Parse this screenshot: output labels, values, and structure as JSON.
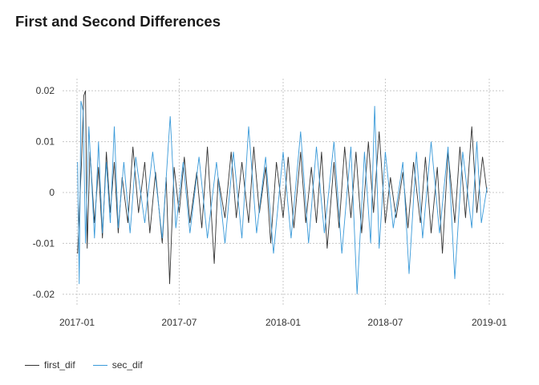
{
  "chart_data": {
    "type": "line",
    "title": "First and Second Differences",
    "xlabel": "",
    "ylabel": "",
    "x_range": [
      "2017-01-01",
      "2019-01-01"
    ],
    "x_ticks": [
      "2017-01",
      "2017-07",
      "2018-01",
      "2018-07",
      "2019-01"
    ],
    "y_ticks": [
      -0.02,
      -0.01,
      0,
      0.01,
      0.02
    ],
    "y_tick_labels": [
      "-0.02",
      "-0.01",
      "0",
      "0.01",
      "0.02"
    ],
    "ylim": [
      -0.0205,
      0.0205
    ],
    "grid": true,
    "legend_position": "bottom-left",
    "series": [
      {
        "name": "first_dif",
        "color": "#333333",
        "points": [
          [
            "2017-01-02",
            -0.012
          ],
          [
            "2017-01-09",
            0.006
          ],
          [
            "2017-01-13",
            0.019
          ],
          [
            "2017-01-16",
            0.02
          ],
          [
            "2017-01-19",
            -0.011
          ],
          [
            "2017-01-24",
            0.008
          ],
          [
            "2017-02-01",
            -0.006
          ],
          [
            "2017-02-08",
            0.005
          ],
          [
            "2017-02-15",
            -0.009
          ],
          [
            "2017-02-22",
            0.008
          ],
          [
            "2017-03-01",
            -0.004
          ],
          [
            "2017-03-08",
            0.006
          ],
          [
            "2017-03-15",
            -0.008
          ],
          [
            "2017-03-22",
            0.003
          ],
          [
            "2017-04-01",
            -0.006
          ],
          [
            "2017-04-10",
            0.009
          ],
          [
            "2017-04-20",
            -0.004
          ],
          [
            "2017-05-01",
            0.006
          ],
          [
            "2017-05-10",
            -0.008
          ],
          [
            "2017-05-20",
            0.004
          ],
          [
            "2017-06-01",
            -0.01
          ],
          [
            "2017-06-08",
            0.003
          ],
          [
            "2017-06-14",
            -0.018
          ],
          [
            "2017-06-22",
            0.005
          ],
          [
            "2017-07-01",
            -0.004
          ],
          [
            "2017-07-10",
            0.007
          ],
          [
            "2017-07-20",
            -0.006
          ],
          [
            "2017-08-01",
            0.004
          ],
          [
            "2017-08-10",
            -0.007
          ],
          [
            "2017-08-20",
            0.009
          ],
          [
            "2017-09-01",
            -0.014
          ],
          [
            "2017-09-08",
            0.003
          ],
          [
            "2017-09-20",
            -0.005
          ],
          [
            "2017-10-01",
            0.008
          ],
          [
            "2017-10-10",
            -0.005
          ],
          [
            "2017-10-20",
            0.006
          ],
          [
            "2017-11-01",
            -0.006
          ],
          [
            "2017-11-10",
            0.009
          ],
          [
            "2017-11-20",
            -0.004
          ],
          [
            "2017-12-01",
            0.005
          ],
          [
            "2017-12-10",
            -0.01
          ],
          [
            "2017-12-20",
            0.006
          ],
          [
            "2018-01-01",
            -0.005
          ],
          [
            "2018-01-10",
            0.007
          ],
          [
            "2018-01-20",
            -0.007
          ],
          [
            "2018-02-01",
            0.008
          ],
          [
            "2018-02-10",
            -0.006
          ],
          [
            "2018-02-20",
            0.005
          ],
          [
            "2018-03-01",
            -0.006
          ],
          [
            "2018-03-10",
            0.008
          ],
          [
            "2018-03-20",
            -0.011
          ],
          [
            "2018-04-01",
            0.006
          ],
          [
            "2018-04-10",
            -0.007
          ],
          [
            "2018-04-20",
            0.009
          ],
          [
            "2018-05-01",
            -0.005
          ],
          [
            "2018-05-10",
            0.008
          ],
          [
            "2018-05-20",
            -0.008
          ],
          [
            "2018-06-01",
            0.01
          ],
          [
            "2018-06-10",
            -0.004
          ],
          [
            "2018-06-20",
            0.012
          ],
          [
            "2018-07-01",
            -0.006
          ],
          [
            "2018-07-10",
            0.003
          ],
          [
            "2018-07-20",
            -0.005
          ],
          [
            "2018-08-01",
            0.004
          ],
          [
            "2018-08-10",
            -0.007
          ],
          [
            "2018-08-20",
            0.006
          ],
          [
            "2018-09-01",
            -0.006
          ],
          [
            "2018-09-10",
            0.007
          ],
          [
            "2018-09-20",
            -0.008
          ],
          [
            "2018-10-01",
            0.005
          ],
          [
            "2018-10-10",
            -0.012
          ],
          [
            "2018-10-20",
            0.008
          ],
          [
            "2018-11-01",
            -0.006
          ],
          [
            "2018-11-10",
            0.009
          ],
          [
            "2018-11-20",
            -0.005
          ],
          [
            "2018-12-01",
            0.013
          ],
          [
            "2018-12-10",
            -0.004
          ],
          [
            "2018-12-20",
            0.007
          ],
          [
            "2018-12-28",
            0.0
          ]
        ]
      },
      {
        "name": "sec_dif",
        "color": "#3a9ad9",
        "points": [
          [
            "2017-01-02",
            0.006
          ],
          [
            "2017-01-05",
            -0.018
          ],
          [
            "2017-01-08",
            0.018
          ],
          [
            "2017-01-12",
            0.016
          ],
          [
            "2017-01-16",
            -0.01
          ],
          [
            "2017-01-22",
            0.013
          ],
          [
            "2017-02-01",
            -0.009
          ],
          [
            "2017-02-08",
            0.01
          ],
          [
            "2017-02-15",
            -0.008
          ],
          [
            "2017-02-22",
            0.006
          ],
          [
            "2017-03-01",
            -0.006
          ],
          [
            "2017-03-08",
            0.013
          ],
          [
            "2017-03-15",
            -0.007
          ],
          [
            "2017-03-25",
            0.006
          ],
          [
            "2017-04-05",
            -0.008
          ],
          [
            "2017-04-15",
            0.007
          ],
          [
            "2017-05-01",
            -0.006
          ],
          [
            "2017-05-15",
            0.008
          ],
          [
            "2017-06-01",
            -0.009
          ],
          [
            "2017-06-15",
            0.015
          ],
          [
            "2017-06-25",
            -0.007
          ],
          [
            "2017-07-08",
            0.006
          ],
          [
            "2017-07-20",
            -0.008
          ],
          [
            "2017-08-05",
            0.007
          ],
          [
            "2017-08-20",
            -0.009
          ],
          [
            "2017-09-05",
            0.006
          ],
          [
            "2017-09-20",
            -0.01
          ],
          [
            "2017-10-05",
            0.008
          ],
          [
            "2017-10-20",
            -0.009
          ],
          [
            "2017-11-01",
            0.013
          ],
          [
            "2017-11-15",
            -0.008
          ],
          [
            "2017-12-01",
            0.007
          ],
          [
            "2017-12-15",
            -0.012
          ],
          [
            "2018-01-01",
            0.008
          ],
          [
            "2018-01-15",
            -0.009
          ],
          [
            "2018-02-01",
            0.012
          ],
          [
            "2018-02-15",
            -0.01
          ],
          [
            "2018-03-01",
            0.009
          ],
          [
            "2018-03-15",
            -0.008
          ],
          [
            "2018-04-01",
            0.01
          ],
          [
            "2018-04-15",
            -0.012
          ],
          [
            "2018-05-01",
            0.009
          ],
          [
            "2018-05-12",
            -0.02
          ],
          [
            "2018-05-25",
            0.008
          ],
          [
            "2018-06-05",
            -0.01
          ],
          [
            "2018-06-12",
            0.017
          ],
          [
            "2018-06-20",
            -0.011
          ],
          [
            "2018-07-01",
            0.008
          ],
          [
            "2018-07-15",
            -0.007
          ],
          [
            "2018-08-01",
            0.006
          ],
          [
            "2018-08-12",
            -0.016
          ],
          [
            "2018-08-25",
            0.008
          ],
          [
            "2018-09-05",
            -0.009
          ],
          [
            "2018-09-20",
            0.01
          ],
          [
            "2018-10-05",
            -0.008
          ],
          [
            "2018-10-20",
            0.009
          ],
          [
            "2018-11-01",
            -0.017
          ],
          [
            "2018-11-15",
            0.008
          ],
          [
            "2018-12-01",
            -0.007
          ],
          [
            "2018-12-10",
            0.01
          ],
          [
            "2018-12-18",
            -0.006
          ],
          [
            "2018-12-28",
            0.001
          ]
        ]
      }
    ]
  }
}
